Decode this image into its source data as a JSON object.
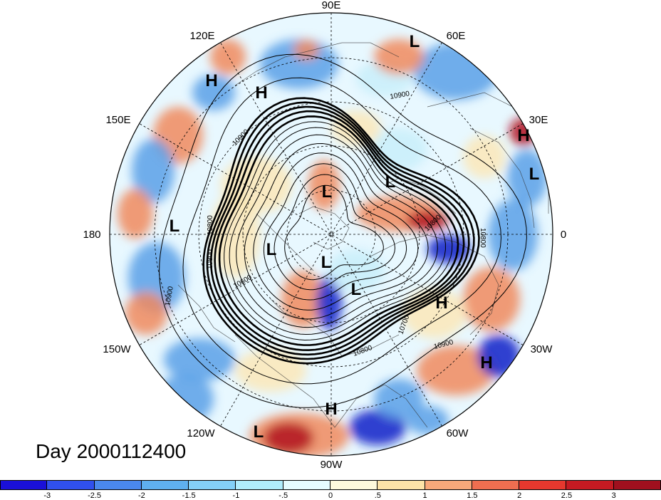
{
  "map": {
    "projection": "north-polar-stereographic",
    "longitude_labels": [
      "90E",
      "60E",
      "30E",
      "0",
      "30W",
      "60W",
      "90W",
      "120W",
      "150W",
      "180",
      "150E",
      "120E"
    ],
    "pressure_centers": [
      {
        "type": "L",
        "lon_label": "60E area"
      },
      {
        "type": "H",
        "lon_label": "120E area"
      },
      {
        "type": "H",
        "lon_label": "120E area"
      },
      {
        "type": "H",
        "lon_label": "30E area"
      },
      {
        "type": "L",
        "lon_label": "30E area"
      },
      {
        "type": "L",
        "lon_label": "interior"
      },
      {
        "type": "L",
        "lon_label": "interior"
      },
      {
        "type": "L",
        "lon_label": "180 area"
      },
      {
        "type": "L",
        "lon_label": "interior"
      },
      {
        "type": "L",
        "lon_label": "interior"
      },
      {
        "type": "L",
        "lon_label": "interior"
      },
      {
        "type": "H",
        "lon_label": "30W area"
      },
      {
        "type": "H",
        "lon_label": "30W area"
      },
      {
        "type": "H",
        "lon_label": "90W area"
      },
      {
        "type": "L",
        "lon_label": "120W area"
      }
    ],
    "contour_labels": [
      "10900",
      "10900",
      "10800",
      "10800",
      "10600",
      "10900",
      "10800",
      "10700",
      "10900",
      "10800",
      "10800"
    ],
    "colors": {
      "strong_negative": "#1020c8",
      "negative": "#5aa0e8",
      "weak_negative": "#c8eefa",
      "weak_positive": "#fbe7b8",
      "positive": "#f08a5e",
      "strong_positive": "#b01020"
    }
  },
  "day_label": "Day 2000112400",
  "colorbar": {
    "colors": [
      "#1a10d8",
      "#3050ee",
      "#4a88ec",
      "#5fb0ef",
      "#84d0f8",
      "#b0ecfc",
      "#e6fbff",
      "#fef9dc",
      "#fde3a8",
      "#f8a87a",
      "#ef6e50",
      "#e6382e",
      "#c51a22",
      "#a0101e"
    ],
    "tick_labels": [
      "-3",
      "-2.5",
      "-2",
      "-1.5",
      "-1",
      "-.5",
      "0",
      ".5",
      "1",
      "1.5",
      "2",
      "2.5",
      "3"
    ]
  }
}
